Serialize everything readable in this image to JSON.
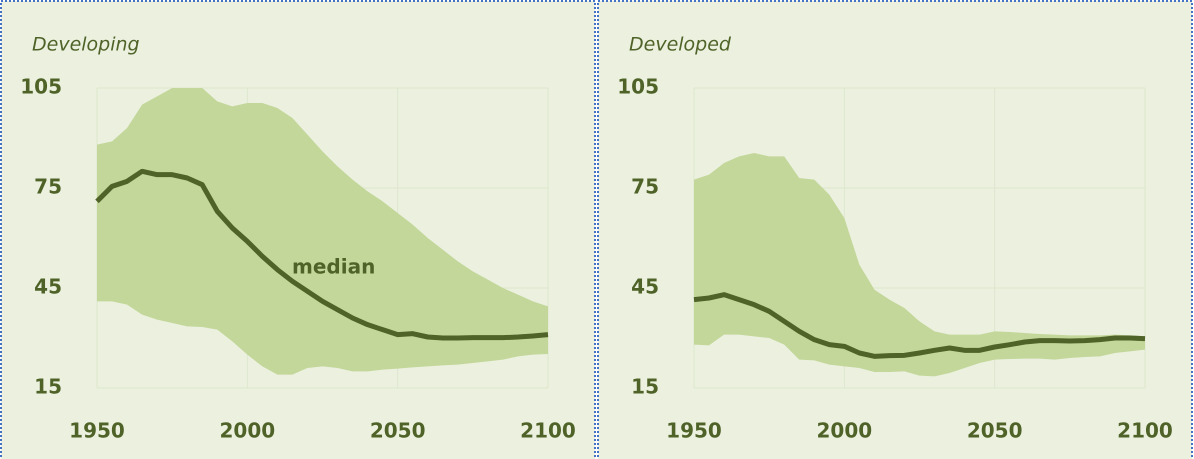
{
  "chart_data": [
    {
      "type": "line",
      "title": "Developing",
      "x": [
        1950,
        1955,
        1960,
        1965,
        1970,
        1975,
        1980,
        1985,
        1990,
        1995,
        2000,
        2005,
        2010,
        2015,
        2020,
        2025,
        2030,
        2035,
        2040,
        2045,
        2050,
        2055,
        2060,
        2065,
        2070,
        2075,
        2080,
        2085,
        2090,
        2095,
        2100
      ],
      "xlim": [
        1950,
        2100
      ],
      "xticks": [
        1950,
        2000,
        2050,
        2100
      ],
      "ylim": [
        15,
        105
      ],
      "yticks": [
        15,
        45,
        75,
        105
      ],
      "grid": true,
      "band": {
        "color": "#c4d79b",
        "upper": [
          88,
          89,
          93,
          100,
          102.5,
          105,
          105,
          105,
          101,
          99.5,
          100.5,
          100.5,
          99,
          96,
          91,
          86,
          81.5,
          77.5,
          74,
          71,
          67.5,
          64,
          60,
          56.5,
          53,
          50,
          47.5,
          45,
          43,
          41,
          39.5
        ],
        "lower": [
          41,
          41,
          40,
          37,
          35.5,
          34.5,
          33.5,
          33.3,
          32.5,
          29,
          25,
          21.5,
          19,
          19,
          21,
          21.5,
          21,
          20,
          20,
          20.5,
          20.8,
          21.2,
          21.5,
          21.8,
          22,
          22.5,
          23,
          23.5,
          24.5,
          25,
          25.2
        ]
      },
      "series": [
        {
          "color": "#4f6228",
          "values": [
            71,
            75.5,
            77,
            80,
            79,
            79,
            78,
            76,
            68,
            63,
            59,
            54.5,
            50.5,
            47,
            44,
            41,
            38.5,
            36,
            34,
            32.5,
            31,
            31.3,
            30.3,
            30,
            30,
            30.1,
            30.1,
            30.1,
            30.3,
            30.6,
            31
          ]
        }
      ],
      "annotation": "median"
    },
    {
      "type": "line",
      "title": "Developed",
      "x": [
        1950,
        1955,
        1960,
        1965,
        1970,
        1975,
        1980,
        1985,
        1990,
        1995,
        2000,
        2005,
        2010,
        2015,
        2020,
        2025,
        2030,
        2035,
        2040,
        2045,
        2050,
        2055,
        2060,
        2065,
        2070,
        2075,
        2080,
        2085,
        2090,
        2095,
        2100
      ],
      "xlim": [
        1950,
        2100
      ],
      "xticks": [
        1950,
        2000,
        2050,
        2100
      ],
      "ylim": [
        15,
        105
      ],
      "yticks": [
        15,
        45,
        75,
        105
      ],
      "grid": true,
      "band": {
        "color": "#c4d79b",
        "upper": [
          77.5,
          79,
          82.5,
          84.5,
          85.5,
          84.5,
          84.5,
          78,
          77.5,
          73,
          66,
          52,
          44.5,
          41.5,
          39,
          35,
          32,
          31,
          31,
          31,
          32,
          31.8,
          31.5,
          31.2,
          31,
          30.8,
          30.8,
          30.8,
          31,
          30.8,
          30.5
        ],
        "lower": [
          28,
          27.8,
          31,
          31,
          30.5,
          30,
          28,
          23.5,
          23.3,
          22,
          21.5,
          21,
          19.8,
          19.8,
          20,
          18.7,
          18.5,
          19.5,
          21,
          22.5,
          23.5,
          23.7,
          23.8,
          23.8,
          23.5,
          24,
          24.3,
          24.5,
          25.5,
          26,
          26.5
        ]
      },
      "series": [
        {
          "color": "#4f6228",
          "values": [
            41.5,
            42,
            43,
            41.5,
            40,
            38,
            35,
            32,
            29.5,
            28,
            27.5,
            25.5,
            24.5,
            24.7,
            24.8,
            25.5,
            26.3,
            27,
            26.3,
            26.3,
            27.3,
            28,
            28.8,
            29.2,
            29.2,
            29.1,
            29.2,
            29.5,
            30,
            30,
            29.8
          ]
        }
      ]
    }
  ]
}
